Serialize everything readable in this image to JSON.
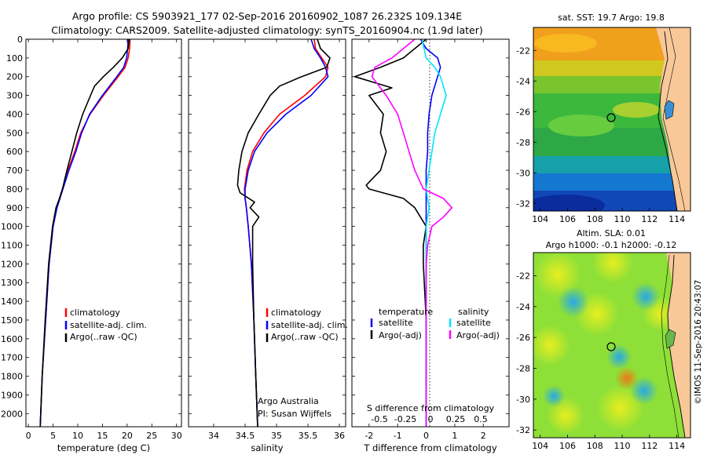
{
  "header": {
    "title_line1": "Argo profile: CS 5903921_177 02-Sep-2016 20160902_1087 26.232S 109.134E",
    "title_line2": "Climatology: CARS2009. Satellite-adjusted climatology: synTS_20160904.nc (1.9d later)"
  },
  "side_label": "©IMOS 11-Sep-2016 20:43:07",
  "colors": {
    "climatology": "#ff0000",
    "satellite": "#0000ff",
    "argo": "#000000",
    "salinity_satellite": "#00e5ff",
    "salinity_argo": "#ff00ff"
  },
  "chart_data": [
    {
      "type": "line",
      "xlabel": "temperature (deg C)",
      "ylabel": "",
      "xlim": [
        -0.5,
        31
      ],
      "ylim": [
        2070,
        0
      ],
      "xticks": [
        0,
        5,
        10,
        15,
        20,
        25,
        30
      ],
      "yticks": [
        0,
        100,
        200,
        300,
        400,
        500,
        600,
        700,
        800,
        900,
        1000,
        1100,
        1200,
        1300,
        1400,
        1500,
        1600,
        1700,
        1800,
        1900,
        2000
      ],
      "legend": [
        "climatology",
        "satellite-adj. clim.",
        "Argo(..raw -QC)"
      ],
      "series": [
        {
          "name": "climatology",
          "color": "#ff0000",
          "depth": [
            0,
            50,
            100,
            150,
            200,
            300,
            400,
            500,
            600,
            700,
            800,
            900,
            1000,
            1200,
            1500,
            1800,
            2070
          ],
          "values": [
            20.6,
            20.5,
            20.2,
            19.6,
            18.2,
            15.2,
            12.5,
            10.6,
            9.4,
            8.0,
            6.9,
            5.7,
            5.0,
            4.2,
            3.5,
            2.8,
            2.4
          ]
        },
        {
          "name": "satellite-adj. clim.",
          "color": "#0000ff",
          "depth": [
            0,
            50,
            100,
            150,
            200,
            300,
            400,
            500,
            600,
            700,
            800,
            900,
            1000,
            1200,
            1500,
            1800,
            2070
          ],
          "values": [
            20.2,
            20.1,
            19.9,
            19.3,
            17.9,
            15.0,
            12.4,
            10.8,
            9.6,
            8.2,
            7.0,
            5.8,
            5.0,
            4.2,
            3.5,
            2.8,
            2.4
          ]
        },
        {
          "name": "Argo(..raw -QC)",
          "color": "#000000",
          "depth": [
            0,
            50,
            100,
            150,
            200,
            250,
            300,
            400,
            500,
            600,
            700,
            800,
            850,
            900,
            1000,
            1200,
            1500,
            1800,
            2070
          ],
          "values": [
            20.4,
            20.2,
            19.0,
            17.2,
            15.2,
            13.4,
            12.6,
            11.0,
            9.8,
            8.8,
            7.8,
            6.9,
            6.3,
            5.6,
            4.9,
            4.1,
            3.4,
            2.8,
            2.4
          ]
        }
      ]
    },
    {
      "type": "line",
      "xlabel": "salinity",
      "ylabel": "",
      "xlim": [
        33.6,
        36.1
      ],
      "ylim": [
        2070,
        0
      ],
      "xticks": [
        34,
        34.5,
        35,
        35.5,
        36
      ],
      "legend": [
        "climatology",
        "satellite-adj. clim.",
        "Argo(..raw -QC)"
      ],
      "annotation_lines": [
        "Argo Australia",
        "PI: Susan Wijffels"
      ],
      "series": [
        {
          "name": "climatology",
          "color": "#ff0000",
          "depth": [
            0,
            50,
            100,
            150,
            200,
            300,
            400,
            500,
            600,
            700,
            800,
            850,
            900,
            1000,
            1200,
            1500,
            1800,
            2070
          ],
          "values": [
            35.6,
            35.62,
            35.72,
            35.82,
            35.78,
            35.45,
            35.05,
            34.8,
            34.62,
            34.53,
            34.49,
            34.5,
            34.52,
            34.55,
            34.6,
            34.64,
            34.67,
            34.7
          ]
        },
        {
          "name": "satellite-adj. clim.",
          "color": "#0000ff",
          "depth": [
            0,
            50,
            100,
            150,
            200,
            300,
            400,
            500,
            600,
            700,
            800,
            850,
            900,
            1000,
            1200,
            1500,
            1800,
            2070
          ],
          "values": [
            35.55,
            35.6,
            35.7,
            35.78,
            35.82,
            35.55,
            35.15,
            34.85,
            34.65,
            34.55,
            34.5,
            34.5,
            34.52,
            34.55,
            34.6,
            34.64,
            34.67,
            34.7
          ]
        },
        {
          "name": "Argo(..raw -QC)",
          "color": "#000000",
          "depth": [
            0,
            50,
            100,
            150,
            200,
            250,
            300,
            400,
            500,
            600,
            700,
            780,
            820,
            870,
            900,
            950,
            1000,
            1100,
            1200,
            1500,
            1800,
            2070
          ],
          "values": [
            35.65,
            35.7,
            35.85,
            35.8,
            35.4,
            35.05,
            34.9,
            34.72,
            34.55,
            34.45,
            34.4,
            34.38,
            34.42,
            34.65,
            34.58,
            34.72,
            34.62,
            34.62,
            34.62,
            34.64,
            34.67,
            34.7
          ]
        }
      ]
    },
    {
      "type": "line",
      "xlabel": "T difference from climatology",
      "xlabel_top": "S difference from climatology",
      "xlim": [
        -2.6,
        2.9
      ],
      "ylim": [
        2070,
        0
      ],
      "xticks": [
        -2,
        -1,
        0,
        1,
        2
      ],
      "xtick_labels_top": [
        "-0.5",
        "-0.25",
        "0",
        "0.25",
        "0.5"
      ],
      "legend_title_left": "temperature",
      "legend_title_right": "salinity",
      "legend_left": [
        "satellite",
        "Argo(-adj)"
      ],
      "legend_right": [
        "satellite",
        "Argo(-adj)"
      ],
      "series": [
        {
          "name": "T satellite",
          "color": "#0000ff",
          "depth": [
            0,
            50,
            100,
            150,
            200,
            300,
            400,
            500,
            600,
            700,
            800,
            900,
            1000,
            1200,
            1500,
            1800,
            2070
          ],
          "values": [
            -0.2,
            0.0,
            0.4,
            0.5,
            0.4,
            0.2,
            0.1,
            0.05,
            0.05,
            0.0,
            0.0,
            0.0,
            0.0,
            0.0,
            0.0,
            0.0,
            0.0
          ]
        },
        {
          "name": "T Argo(-adj)",
          "color": "#000000",
          "depth": [
            0,
            100,
            150,
            200,
            260,
            300,
            400,
            500,
            600,
            700,
            780,
            800,
            850,
            900,
            1000,
            1100,
            1200,
            1500,
            1800,
            2070
          ],
          "values": [
            0.0,
            -0.8,
            -1.6,
            -2.5,
            -1.2,
            -2.0,
            -1.5,
            -1.6,
            -1.4,
            -1.6,
            -2.1,
            -2.0,
            -0.8,
            -0.4,
            0.0,
            -0.1,
            -0.1,
            0.0,
            0.0,
            0.0
          ]
        },
        {
          "name": "S satellite",
          "color": "#00e5ff",
          "depth": [
            0,
            100,
            150,
            200,
            300,
            400,
            500,
            600,
            700,
            800,
            900,
            1000,
            1200,
            1500,
            1800,
            2070
          ],
          "values": [
            -0.15,
            0.0,
            0.3,
            0.5,
            0.7,
            0.5,
            0.3,
            0.2,
            0.1,
            0.0,
            0.1,
            0.0,
            0.0,
            0.0,
            0.0,
            0.0
          ]
        },
        {
          "name": "S Argo(-adj)",
          "color": "#ff00ff",
          "depth": [
            0,
            100,
            150,
            200,
            300,
            400,
            500,
            600,
            700,
            800,
            850,
            900,
            950,
            1000,
            1100,
            1200,
            1500,
            1800,
            2070
          ],
          "values": [
            -0.4,
            -1.2,
            -1.8,
            -1.9,
            -1.4,
            -1.0,
            -0.8,
            -0.6,
            -0.4,
            -0.1,
            0.6,
            0.9,
            0.6,
            0.2,
            0.05,
            0.0,
            0.0,
            0.0,
            0.0
          ]
        }
      ]
    },
    {
      "type": "heatmap",
      "title": "sat. SST: 19.7 Argo: 19.8",
      "xlim": [
        103.5,
        115
      ],
      "ylim": [
        -32.5,
        -20.5
      ],
      "xticks": [
        104,
        106,
        108,
        110,
        112,
        114
      ],
      "yticks": [
        -22,
        -24,
        -26,
        -28,
        -30,
        -32
      ],
      "marker": {
        "lon": 109.134,
        "lat": -26.232
      }
    },
    {
      "type": "heatmap",
      "title_line1": "Altim. SLA: 0.01",
      "title_line2": "Argo h1000: -0.1 h2000: -0.12",
      "xlim": [
        103.5,
        115
      ],
      "ylim": [
        -32.5,
        -20.5
      ],
      "xticks": [
        104,
        106,
        108,
        110,
        112,
        114
      ],
      "yticks": [
        -22,
        -24,
        -26,
        -28,
        -30,
        -32
      ],
      "marker": {
        "lon": 109.134,
        "lat": -26.232
      }
    }
  ]
}
